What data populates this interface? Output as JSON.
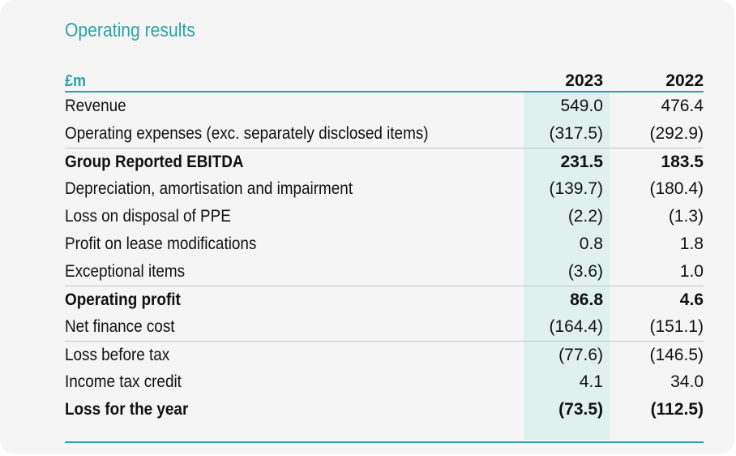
{
  "title": "Operating results",
  "table": {
    "unit": "£m",
    "col_2023": "2023",
    "col_2022": "2022",
    "rows": [
      {
        "label": "Revenue",
        "v2023": "549.0",
        "v2022": "476.4"
      },
      {
        "label": "Operating expenses (exc. separately disclosed items)",
        "v2023": "(317.5)",
        "v2022": "(292.9)"
      },
      {
        "label": "Group Reported EBITDA",
        "v2023": "231.5",
        "v2022": "183.5"
      },
      {
        "label": "Depreciation, amortisation and impairment",
        "v2023": "(139.7)",
        "v2022": "(180.4)"
      },
      {
        "label": "Loss on disposal of PPE",
        "v2023": "(2.2)",
        "v2022": "(1.3)"
      },
      {
        "label": "Profit on lease modifications",
        "v2023": "0.8",
        "v2022": "1.8"
      },
      {
        "label": "Exceptional items",
        "v2023": "(3.6)",
        "v2022": "1.0"
      },
      {
        "label": "Operating profit",
        "v2023": "86.8",
        "v2022": "4.6"
      },
      {
        "label": "Net finance cost",
        "v2023": "(164.4)",
        "v2022": "(151.1)"
      },
      {
        "label": "Loss before tax",
        "v2023": "(77.6)",
        "v2022": "(146.5)"
      },
      {
        "label": "Income tax credit",
        "v2023": "4.1",
        "v2022": "34.0"
      },
      {
        "label": "Loss for the year",
        "v2023": "(73.5)",
        "v2022": "(112.5)"
      }
    ]
  }
}
